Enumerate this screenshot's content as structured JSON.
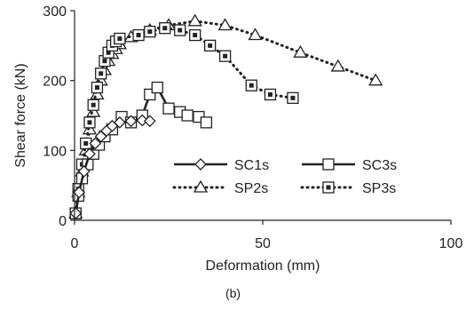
{
  "chart_data": {
    "type": "line",
    "xlabel": "Deformation (mm)",
    "ylabel": "Shear force (kN)",
    "xlim": [
      0,
      100
    ],
    "ylim": [
      0,
      300
    ],
    "x_ticks": [
      0,
      50,
      100
    ],
    "y_ticks": [
      0,
      100,
      200,
      300
    ],
    "grid": false,
    "legend_placement": "center-right",
    "series": [
      {
        "name": "SC1s",
        "marker": "diamond",
        "line": "solid",
        "color": "#222222",
        "x": [
          0.3,
          1.2,
          2.5,
          4,
          5.5,
          7,
          8.5,
          10,
          12,
          15,
          18,
          20
        ],
        "y": [
          10,
          40,
          70,
          95,
          110,
          120,
          128,
          135,
          140,
          142,
          143,
          142
        ]
      },
      {
        "name": "SC3s",
        "marker": "square",
        "line": "solid",
        "color": "#222222",
        "x": [
          0.3,
          1,
          2,
          3.5,
          5,
          6.5,
          8,
          10,
          12.5,
          15,
          18,
          20,
          22,
          25,
          28,
          30,
          33,
          35
        ],
        "y": [
          10,
          35,
          60,
          80,
          95,
          108,
          120,
          130,
          148,
          140,
          150,
          180,
          190,
          160,
          155,
          150,
          148,
          140
        ]
      },
      {
        "name": "SP2s",
        "marker": "triangle",
        "line": "dotted",
        "color": "#222222",
        "x": [
          0.3,
          1,
          2,
          3,
          4,
          5,
          6,
          7,
          8,
          9,
          10,
          11,
          12,
          15,
          20,
          25,
          32,
          40,
          48,
          60,
          70,
          80
        ],
        "y": [
          10,
          40,
          70,
          100,
          130,
          155,
          180,
          200,
          215,
          228,
          238,
          245,
          252,
          262,
          272,
          279,
          285,
          279,
          265,
          240,
          220,
          200
        ]
      },
      {
        "name": "SP3s",
        "marker": "square-dot",
        "line": "dotted",
        "color": "#222222",
        "x": [
          0.3,
          1,
          2,
          3,
          4,
          5,
          6,
          7,
          8,
          9,
          10,
          11,
          12,
          17,
          20,
          24,
          28,
          32,
          36,
          40,
          47,
          52,
          58
        ],
        "y": [
          10,
          45,
          80,
          110,
          140,
          165,
          190,
          210,
          228,
          240,
          250,
          256,
          260,
          265,
          270,
          275,
          272,
          265,
          250,
          235,
          193,
          180,
          175
        ]
      }
    ]
  },
  "caption": "(b)"
}
